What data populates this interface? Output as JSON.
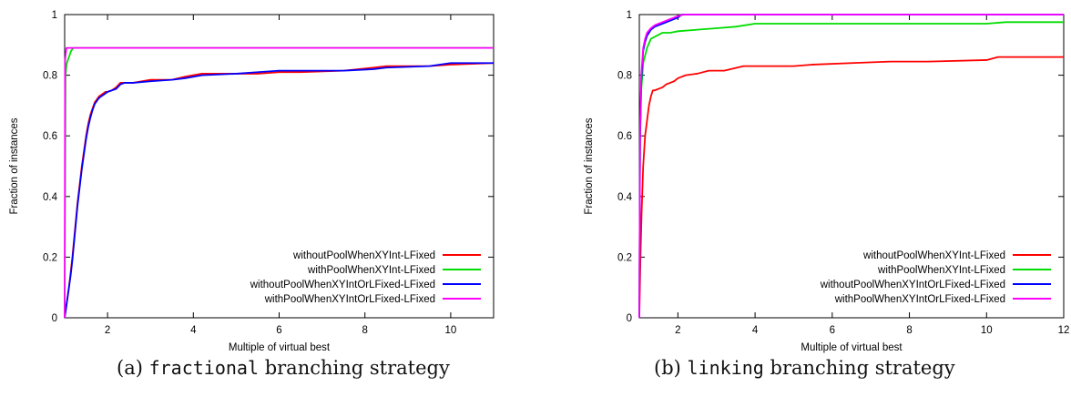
{
  "chart_data": [
    {
      "type": "line",
      "title": "",
      "xlabel": "Multiple of virtual best",
      "ylabel": "Fraction of instances",
      "xlim": [
        1,
        11
      ],
      "ylim": [
        0,
        1
      ],
      "xticks": [
        2,
        4,
        6,
        8,
        10
      ],
      "xtick_labels": [
        "2",
        "4",
        "6",
        "8",
        "10"
      ],
      "yticks": [
        0,
        0.2,
        0.4,
        0.6,
        0.8,
        1
      ],
      "ytick_labels": [
        "0",
        "0.2",
        "0.4",
        "0.6",
        "0.8",
        "1"
      ],
      "legend_position": "bottom-right",
      "grid": false,
      "caption_prefix": "(a)",
      "caption_code": "fractional",
      "caption_suffix": "branching strategy",
      "series": [
        {
          "name": "withoutPoolWhenXYInt-LFixed",
          "color": "#ff0000",
          "x": [
            1.0,
            1.03,
            1.06,
            1.1,
            1.14,
            1.18,
            1.22,
            1.26,
            1.3,
            1.35,
            1.4,
            1.45,
            1.5,
            1.55,
            1.6,
            1.65,
            1.7,
            1.75,
            1.8,
            1.85,
            1.9,
            1.95,
            2.0,
            2.1,
            2.2,
            2.3,
            2.4,
            2.6,
            3.0,
            3.5,
            3.8,
            4.2,
            5.0,
            5.5,
            6.0,
            6.5,
            7.5,
            8.2,
            8.5,
            9.5,
            10.0,
            11.0
          ],
          "y": [
            0.0,
            0.03,
            0.06,
            0.1,
            0.15,
            0.2,
            0.26,
            0.32,
            0.38,
            0.44,
            0.5,
            0.55,
            0.6,
            0.64,
            0.67,
            0.69,
            0.71,
            0.72,
            0.73,
            0.735,
            0.74,
            0.745,
            0.745,
            0.75,
            0.76,
            0.775,
            0.775,
            0.775,
            0.785,
            0.785,
            0.795,
            0.805,
            0.805,
            0.805,
            0.81,
            0.81,
            0.815,
            0.825,
            0.83,
            0.83,
            0.835,
            0.84
          ]
        },
        {
          "name": "withPoolWhenXYInt-LFixed",
          "color": "#00dd00",
          "x": [
            1.0,
            1.02,
            1.05,
            1.1,
            1.15,
            1.2,
            11.0
          ],
          "y": [
            0.0,
            0.8,
            0.84,
            0.86,
            0.88,
            0.89,
            0.89
          ]
        },
        {
          "name": "withoutPoolWhenXYIntOrLFixed-LFixed",
          "color": "#0000ff",
          "x": [
            1.0,
            1.03,
            1.06,
            1.1,
            1.14,
            1.18,
            1.22,
            1.26,
            1.3,
            1.35,
            1.4,
            1.45,
            1.5,
            1.55,
            1.6,
            1.65,
            1.7,
            1.75,
            1.8,
            1.85,
            1.9,
            1.95,
            2.0,
            2.1,
            2.2,
            2.3,
            2.4,
            2.6,
            3.0,
            3.5,
            3.8,
            4.2,
            5.0,
            5.5,
            6.0,
            6.5,
            7.5,
            8.2,
            8.5,
            9.5,
            10.0,
            11.0
          ],
          "y": [
            0.0,
            0.03,
            0.06,
            0.1,
            0.14,
            0.19,
            0.25,
            0.31,
            0.37,
            0.43,
            0.49,
            0.54,
            0.59,
            0.63,
            0.66,
            0.685,
            0.705,
            0.715,
            0.725,
            0.73,
            0.735,
            0.74,
            0.745,
            0.75,
            0.755,
            0.77,
            0.775,
            0.775,
            0.78,
            0.785,
            0.79,
            0.8,
            0.805,
            0.81,
            0.815,
            0.815,
            0.815,
            0.82,
            0.825,
            0.83,
            0.84,
            0.84
          ]
        },
        {
          "name": "withPoolWhenXYIntOrLFixed-LFixed",
          "color": "#ff00ff",
          "x": [
            1.0,
            1.01,
            1.04,
            1.08,
            11.0
          ],
          "y": [
            0.0,
            0.85,
            0.89,
            0.89,
            0.89
          ]
        }
      ]
    },
    {
      "type": "line",
      "title": "",
      "xlabel": "Multiple of virtual best",
      "ylabel": "Fraction of instances",
      "xlim": [
        1,
        12
      ],
      "ylim": [
        0,
        1
      ],
      "xticks": [
        2,
        4,
        6,
        8,
        10,
        12
      ],
      "xtick_labels": [
        "2",
        "4",
        "6",
        "8",
        "10",
        "12"
      ],
      "yticks": [
        0,
        0.2,
        0.4,
        0.6,
        0.8,
        1
      ],
      "ytick_labels": [
        "0",
        "0.2",
        "0.4",
        "0.6",
        "0.8",
        "1"
      ],
      "legend_position": "bottom-right",
      "grid": false,
      "caption_prefix": "(b)",
      "caption_code": "linking",
      "caption_suffix": "branching strategy",
      "series": [
        {
          "name": "withoutPoolWhenXYInt-LFixed",
          "color": "#ff0000",
          "x": [
            1.0,
            1.03,
            1.06,
            1.1,
            1.15,
            1.2,
            1.25,
            1.3,
            1.35,
            1.4,
            1.5,
            1.6,
            1.7,
            1.8,
            1.9,
            2.0,
            2.2,
            2.5,
            2.8,
            3.2,
            3.7,
            4.0,
            5.0,
            5.5,
            6.5,
            7.5,
            8.5,
            10.0,
            10.3,
            12.0
          ],
          "y": [
            0.0,
            0.2,
            0.35,
            0.5,
            0.6,
            0.65,
            0.7,
            0.73,
            0.75,
            0.75,
            0.755,
            0.76,
            0.77,
            0.775,
            0.78,
            0.79,
            0.8,
            0.805,
            0.815,
            0.815,
            0.83,
            0.83,
            0.83,
            0.835,
            0.84,
            0.845,
            0.845,
            0.85,
            0.86,
            0.86
          ]
        },
        {
          "name": "withPoolWhenXYInt-LFixed",
          "color": "#00dd00",
          "x": [
            1.0,
            1.02,
            1.05,
            1.1,
            1.2,
            1.3,
            1.45,
            1.6,
            1.8,
            2.0,
            2.5,
            3.0,
            3.5,
            4.0,
            6.0,
            8.0,
            10.0,
            10.5,
            12.0
          ],
          "y": [
            0.0,
            0.6,
            0.75,
            0.84,
            0.89,
            0.92,
            0.93,
            0.94,
            0.94,
            0.945,
            0.95,
            0.955,
            0.96,
            0.97,
            0.97,
            0.97,
            0.97,
            0.975,
            0.975
          ]
        },
        {
          "name": "withoutPoolWhenXYIntOrLFixed-LFixed",
          "color": "#0000ff",
          "x": [
            1.0,
            1.02,
            1.05,
            1.1,
            1.15,
            1.2,
            1.3,
            1.4,
            1.5,
            1.6,
            1.8,
            2.0,
            2.1,
            12.0
          ],
          "y": [
            0.0,
            0.6,
            0.78,
            0.88,
            0.91,
            0.93,
            0.95,
            0.96,
            0.965,
            0.97,
            0.98,
            0.99,
            1.0,
            1.0
          ]
        },
        {
          "name": "withPoolWhenXYIntOrLFixed-LFixed",
          "color": "#ff00ff",
          "x": [
            1.0,
            1.02,
            1.05,
            1.1,
            1.15,
            1.2,
            1.3,
            1.4,
            1.5,
            1.6,
            1.8,
            2.0,
            2.15,
            12.0
          ],
          "y": [
            0.0,
            0.62,
            0.8,
            0.89,
            0.92,
            0.94,
            0.955,
            0.965,
            0.97,
            0.975,
            0.985,
            0.995,
            1.0,
            1.0
          ]
        }
      ]
    }
  ]
}
